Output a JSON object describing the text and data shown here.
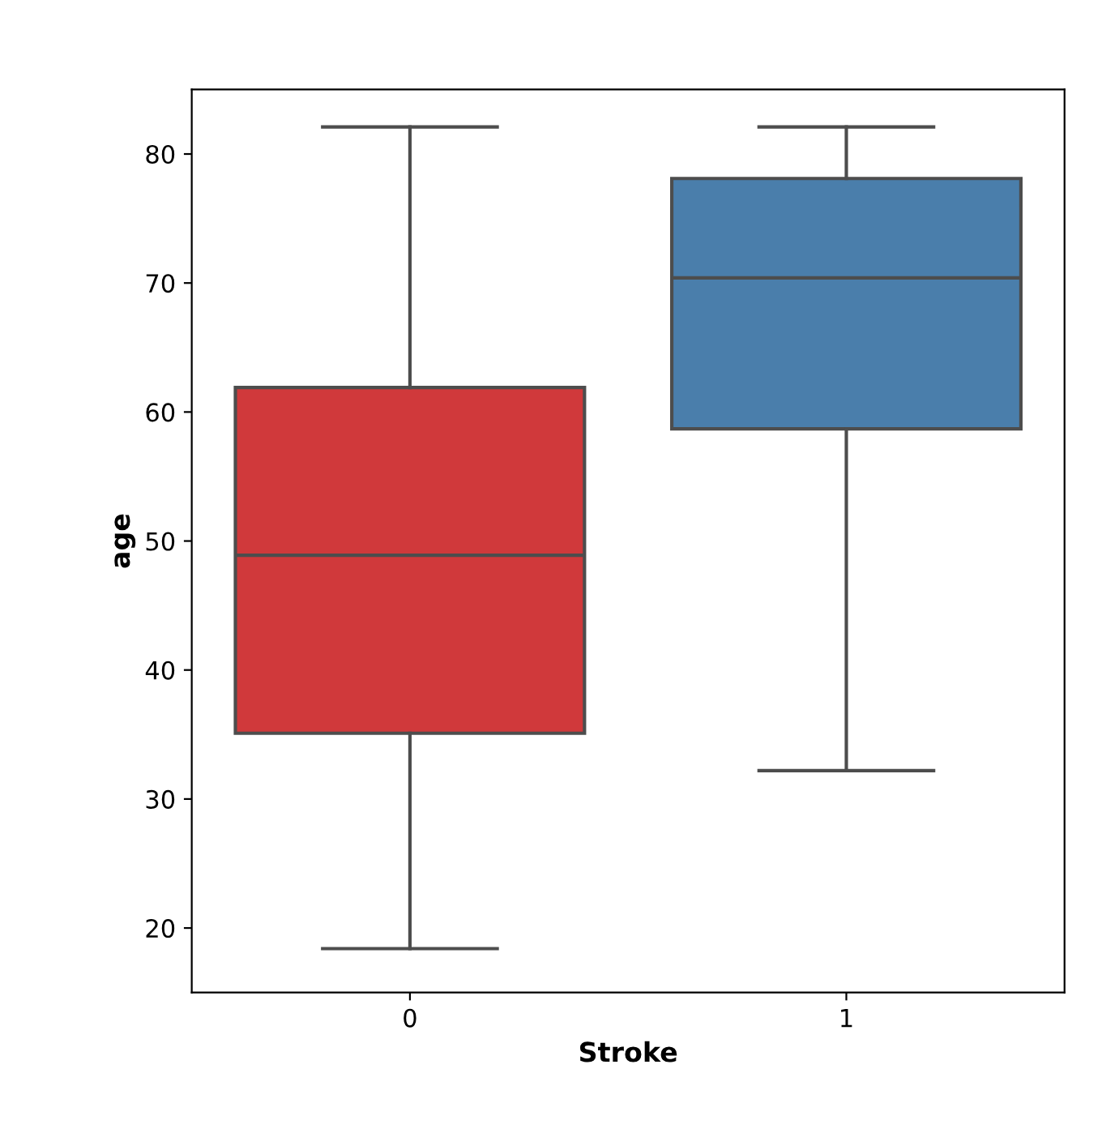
{
  "chart_data": {
    "type": "box",
    "xlabel": "Stroke",
    "ylabel": "age",
    "categories": [
      "0",
      "1"
    ],
    "boxes": [
      {
        "low": 18.4,
        "q1": 35.1,
        "median": 48.9,
        "q3": 61.9,
        "high": 82.1
      },
      {
        "low": 32.2,
        "q1": 58.7,
        "median": 70.4,
        "q3": 78.1,
        "high": 82.1
      }
    ],
    "colors": [
      "#d0393b",
      "#4a7eab"
    ],
    "ylim": [
      15,
      85
    ],
    "yticks": [
      20,
      30,
      40,
      50,
      60,
      70,
      80
    ],
    "grid": false
  }
}
